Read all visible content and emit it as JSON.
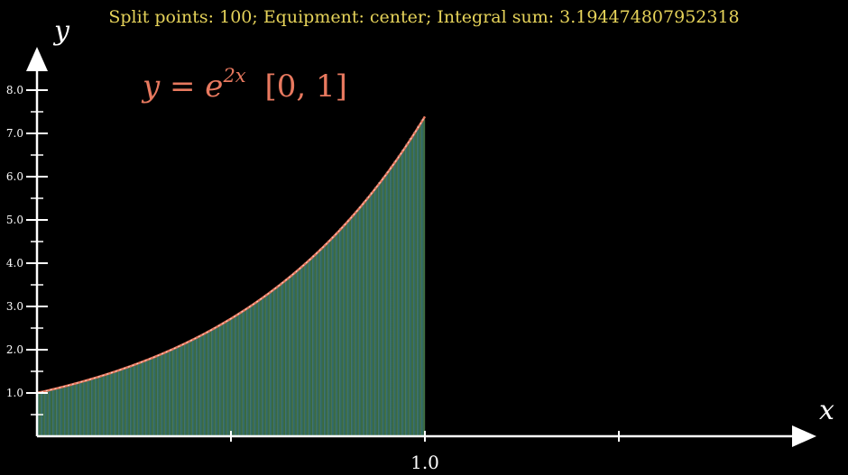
{
  "annotation": "Split points: 100; Equipment: center; Integral sum: 3.194474807952318",
  "formula": {
    "base": "y = e",
    "exponent": "2x",
    "interval": "[0, 1]"
  },
  "chart_data": {
    "type": "bar",
    "function": "e^(2x)",
    "interval": [
      0,
      1
    ],
    "split_points": 100,
    "sample_point": "center",
    "integral_sum": 3.194474807952318,
    "xlabel": "x",
    "ylabel": "y",
    "xlim": [
      0,
      2
    ],
    "ylim": [
      0,
      8.5
    ],
    "x_tick_values": [
      0.5,
      1.0,
      1.5
    ],
    "x_tick_labels": [
      "",
      "1.0",
      ""
    ],
    "y_major_ticks": [
      1.0,
      2.0,
      3.0,
      4.0,
      5.0,
      6.0,
      7.0,
      8.0
    ],
    "y_tick_labels": [
      "1.0",
      "2.0",
      "3.0",
      "4.0",
      "5.0",
      "6.0",
      "7.0",
      "8.0"
    ],
    "y_minor_ticks": [
      0.5,
      1.5,
      2.5,
      3.5,
      4.5,
      5.5,
      6.5,
      7.5
    ],
    "colors": {
      "curve": "#e8795f",
      "bar_start": "#2e6b7d",
      "bar_end": "#3f6a2c",
      "axis": "#ffffff",
      "annotation": "#e6d35a"
    }
  }
}
